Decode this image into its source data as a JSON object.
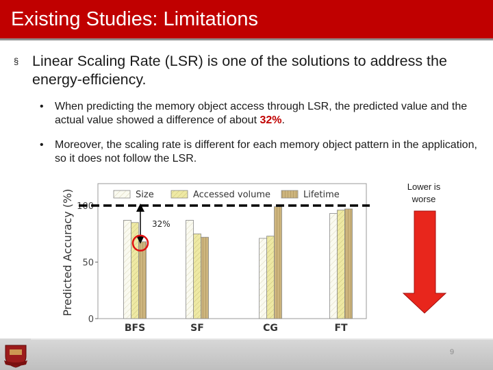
{
  "slide": {
    "title": "Existing Studies: Limitations",
    "bullet_main": "Linear Scaling Rate (LSR) is one of the solutions to address the energy-efficiency.",
    "sub_bullet_1_pre": "When predicting the memory object access through LSR, the predicted value and the actual value showed a difference of about ",
    "sub_bullet_1_highlight": "32%",
    "sub_bullet_1_post": ".",
    "sub_bullet_2": "Moreover, the scaling rate is different for each memory object pattern in the application, so it does not follow the LSR.",
    "bullet_mark_main": "§",
    "bullet_mark_sub": "•",
    "arrow_label": "Lower is worse",
    "page_number": "9"
  },
  "colors": {
    "title_bar": "#c00000",
    "highlight": "#c00000",
    "arrow": "#e8261c"
  },
  "chart_data": {
    "type": "bar",
    "ylabel": "Predicted Accuracy (%)",
    "yticks": [
      "0",
      "50",
      "100"
    ],
    "ylim": [
      0,
      120
    ],
    "categories": [
      "BFS",
      "SF",
      "CG",
      "FT"
    ],
    "series": [
      {
        "name": "Size",
        "values": [
          87,
          87,
          71,
          93
        ],
        "color": "#fafaf0"
      },
      {
        "name": "Accessed volume",
        "values": [
          85,
          75,
          73,
          96
        ],
        "color": "#eee9a4"
      },
      {
        "name": "Lifetime",
        "values": [
          68,
          72,
          99,
          97
        ],
        "color": "#cdb57e"
      }
    ],
    "reference_line": 100,
    "annotation": "32%",
    "grid": false,
    "legend_position": "top"
  }
}
